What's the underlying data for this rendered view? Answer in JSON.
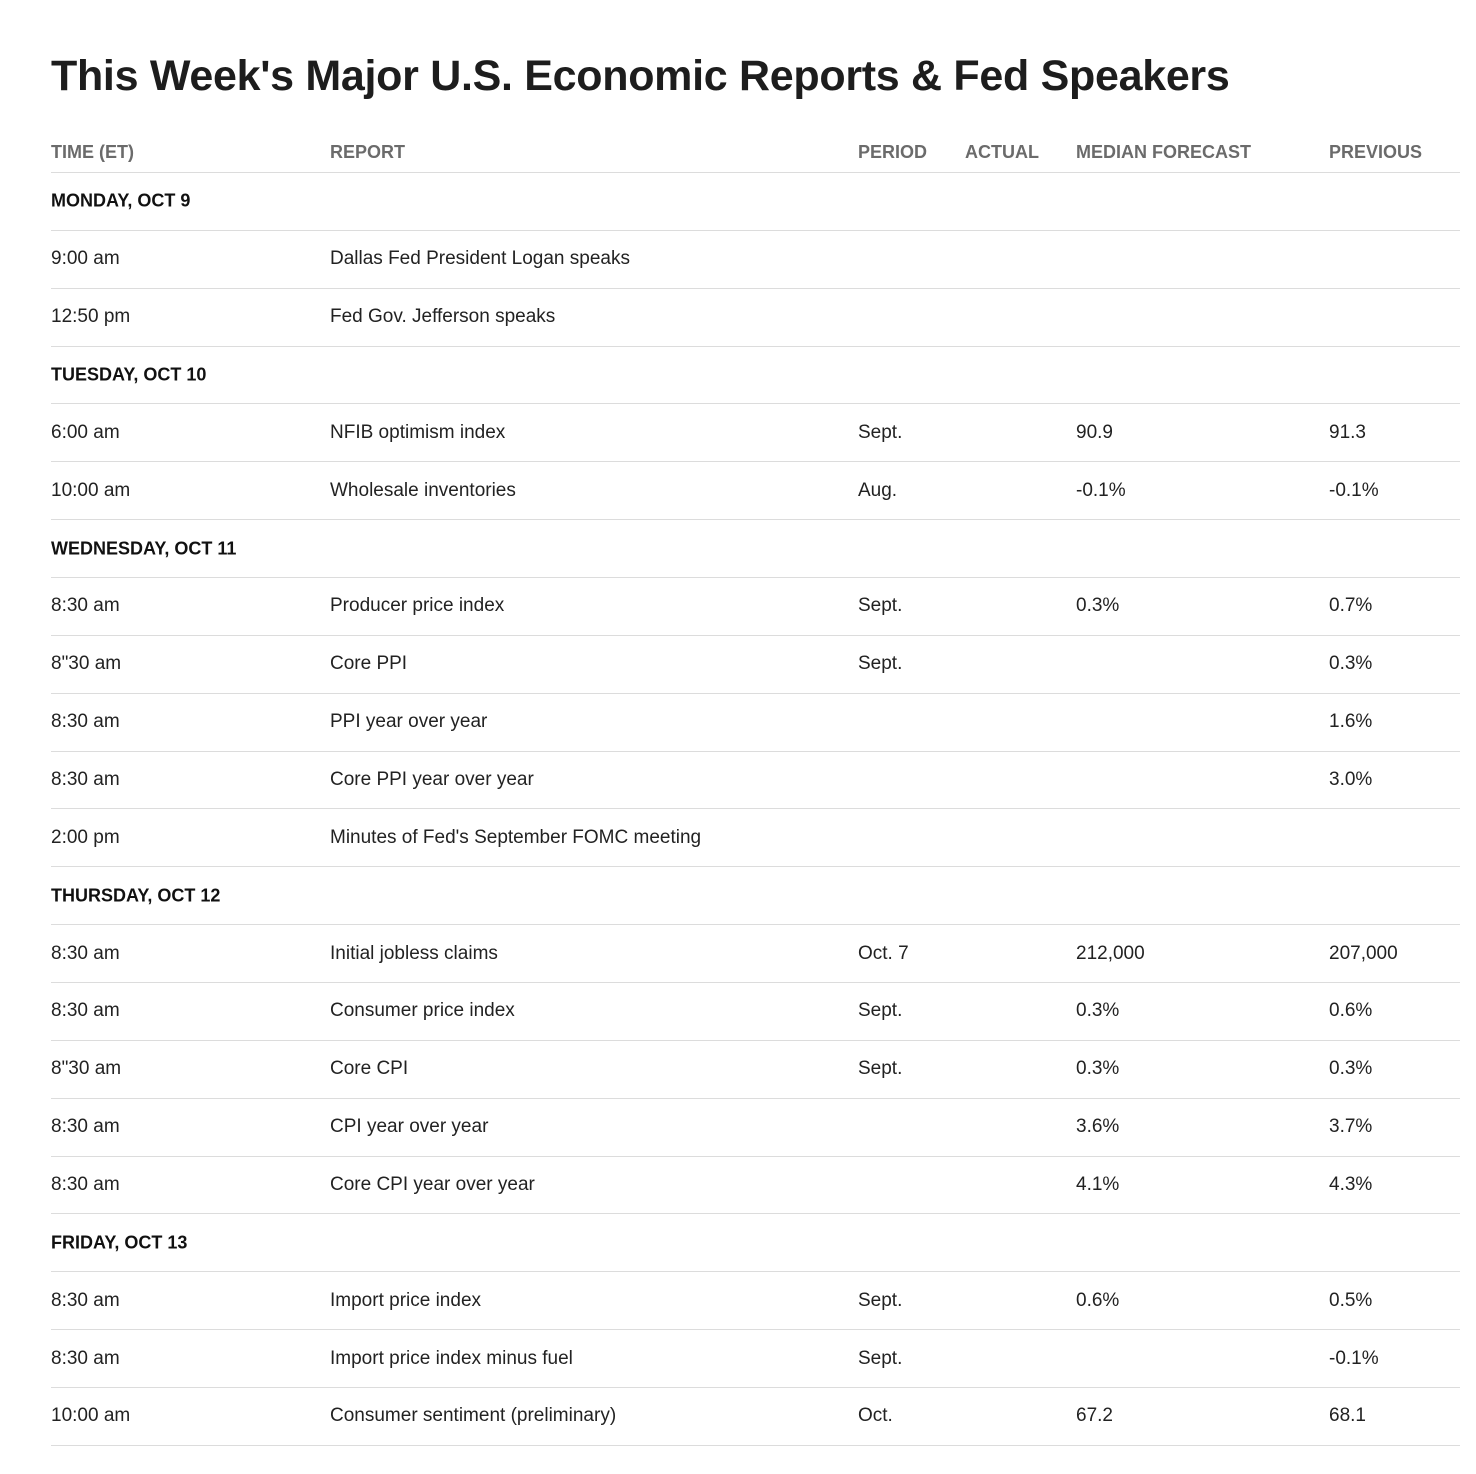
{
  "title": "This Week's Major U.S. Economic Reports & Fed Speakers",
  "columns": [
    "TIME (ET)",
    "REPORT",
    "PERIOD",
    "ACTUAL",
    "MEDIAN FORECAST",
    "PREVIOUS"
  ],
  "rows": [
    {
      "day": "MONDAY, OCT 9"
    },
    {
      "time": "9:00 am",
      "report": "Dallas Fed President Logan speaks",
      "period": "",
      "actual": "",
      "forecast": "",
      "previous": ""
    },
    {
      "time": "12:50 pm",
      "report": "Fed Gov. Jefferson speaks",
      "period": "",
      "actual": "",
      "forecast": "",
      "previous": ""
    },
    {
      "day": "TUESDAY, OCT 10"
    },
    {
      "time": "6:00 am",
      "report": "NFIB optimism index",
      "period": "Sept.",
      "actual": "",
      "forecast": "90.9",
      "previous": "91.3"
    },
    {
      "time": "10:00 am",
      "report": "Wholesale inventories",
      "period": "Aug.",
      "actual": "",
      "forecast": "-0.1%",
      "previous": "-0.1%"
    },
    {
      "day": "WEDNESDAY, OCT 11"
    },
    {
      "time": "8:30 am",
      "report": "Producer price index",
      "period": "Sept.",
      "actual": "",
      "forecast": "0.3%",
      "previous": "0.7%"
    },
    {
      "time": "8\"30 am",
      "report": "Core PPI",
      "period": "Sept.",
      "actual": "",
      "forecast": "",
      "previous": "0.3%"
    },
    {
      "time": "8:30 am",
      "report": "PPI year over year",
      "period": "",
      "actual": "",
      "forecast": "",
      "previous": "1.6%"
    },
    {
      "time": "8:30 am",
      "report": "Core PPI year over year",
      "period": "",
      "actual": "",
      "forecast": "",
      "previous": "3.0%"
    },
    {
      "time": "2:00 pm",
      "report": "Minutes of Fed's September FOMC meeting",
      "period": "",
      "actual": "",
      "forecast": "",
      "previous": ""
    },
    {
      "day": "THURSDAY, OCT 12"
    },
    {
      "time": "8:30 am",
      "report": "Initial jobless claims",
      "period": "Oct. 7",
      "actual": "",
      "forecast": "212,000",
      "previous": "207,000"
    },
    {
      "time": "8:30 am",
      "report": "Consumer price index",
      "period": "Sept.",
      "actual": "",
      "forecast": "0.3%",
      "previous": "0.6%"
    },
    {
      "time": "8\"30 am",
      "report": "Core CPI",
      "period": "Sept.",
      "actual": "",
      "forecast": "0.3%",
      "previous": "0.3%"
    },
    {
      "time": "8:30 am",
      "report": "CPI year over year",
      "period": "",
      "actual": "",
      "forecast": "3.6%",
      "previous": "3.7%"
    },
    {
      "time": "8:30 am",
      "report": "Core CPI year over year",
      "period": "",
      "actual": "",
      "forecast": "4.1%",
      "previous": "4.3%"
    },
    {
      "day": "FRIDAY, OCT 13"
    },
    {
      "time": "8:30 am",
      "report": "Import price index",
      "period": "Sept.",
      "actual": "",
      "forecast": "0.6%",
      "previous": "0.5%"
    },
    {
      "time": "8:30 am",
      "report": "Import price index minus fuel",
      "period": "Sept.",
      "actual": "",
      "forecast": "",
      "previous": "-0.1%"
    },
    {
      "time": "10:00 am",
      "report": "Consumer sentiment (preliminary)",
      "period": "Oct.",
      "actual": "",
      "forecast": "67.2",
      "previous": "68.1"
    }
  ]
}
